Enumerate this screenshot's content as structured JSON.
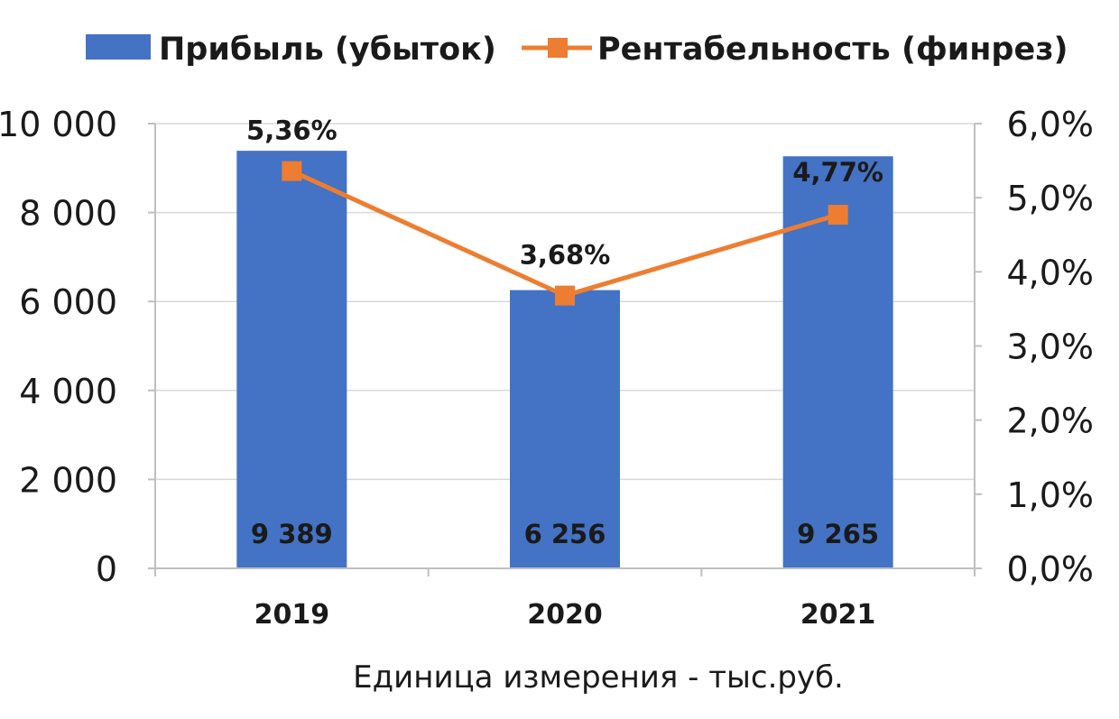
{
  "chart_data": {
    "type": "bar",
    "categories": [
      "2019",
      "2020",
      "2021"
    ],
    "series": [
      {
        "name": "Прибыль (убыток)",
        "kind": "bar",
        "axis": "left",
        "color": "#4472C4",
        "values": [
          9389,
          6256,
          9265
        ],
        "labels": [
          "9 389",
          "6 256",
          "9 265"
        ]
      },
      {
        "name": "Рентабельность (финрез)",
        "kind": "line",
        "axis": "right",
        "color": "#ED7D31",
        "marker": "square",
        "values": [
          5.36,
          3.68,
          4.77
        ],
        "labels": [
          "5,36%",
          "3,68%",
          "4,77%"
        ]
      }
    ],
    "y_left": {
      "range": [
        0,
        10000
      ],
      "ticks": [
        0,
        2000,
        4000,
        6000,
        8000,
        10000
      ],
      "tick_labels": [
        "0",
        "2 000",
        "4 000",
        "6 000",
        "8 000",
        "10 000"
      ]
    },
    "y_right": {
      "range": [
        0,
        6
      ],
      "ticks": [
        0,
        1,
        2,
        3,
        4,
        5,
        6
      ],
      "tick_labels": [
        "0,0%",
        "1,0%",
        "2,0%",
        "3,0%",
        "4,0%",
        "5,0%",
        "6,0%"
      ]
    },
    "xlabel": "Единица измерения - тыс.руб.",
    "grid": true,
    "legend": "top-center"
  }
}
